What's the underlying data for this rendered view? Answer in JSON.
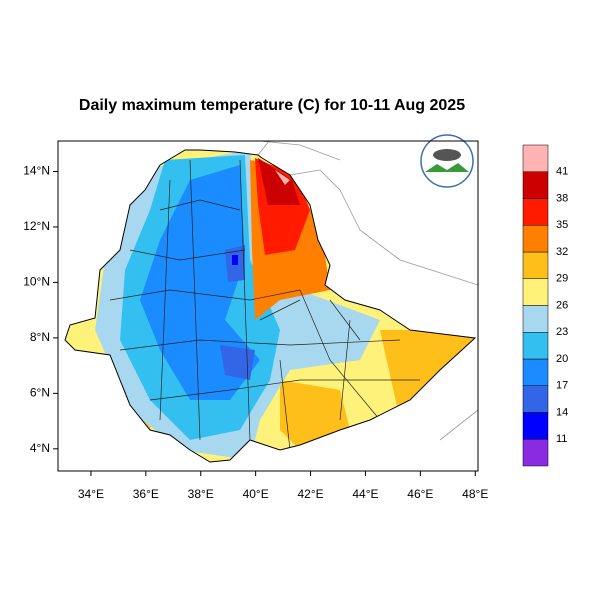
{
  "title": "Daily maximum temperature (C) for 10-11 Aug 2025",
  "map": {
    "xlim": [
      32.8,
      48.1
    ],
    "ylim": [
      3.2,
      15.1
    ],
    "xticks": [
      {
        "value": 34,
        "label": "34°E"
      },
      {
        "value": 36,
        "label": "36°E"
      },
      {
        "value": 38,
        "label": "38°E"
      },
      {
        "value": 40,
        "label": "40°E"
      },
      {
        "value": 42,
        "label": "42°E"
      },
      {
        "value": 44,
        "label": "44°E"
      },
      {
        "value": 46,
        "label": "46°E"
      },
      {
        "value": 48,
        "label": "48°E"
      }
    ],
    "yticks": [
      {
        "value": 4,
        "label": "4°N"
      },
      {
        "value": 6,
        "label": "6°N"
      },
      {
        "value": 8,
        "label": "8°N"
      },
      {
        "value": 10,
        "label": "10°N"
      },
      {
        "value": 12,
        "label": "12°N"
      },
      {
        "value": 14,
        "label": "14°N"
      }
    ]
  },
  "colorbar": {
    "levels": [
      11,
      14,
      17,
      20,
      23,
      26,
      29,
      32,
      35,
      38,
      41
    ],
    "colors": [
      "#8a2be2",
      "#0000ff",
      "#3366e6",
      "#1a8cff",
      "#33c0f0",
      "#a8d8f0",
      "#fff27a",
      "#ffbf1a",
      "#ff8000",
      "#ff1a00",
      "#cc0000",
      "#ffb3b3"
    ]
  }
}
